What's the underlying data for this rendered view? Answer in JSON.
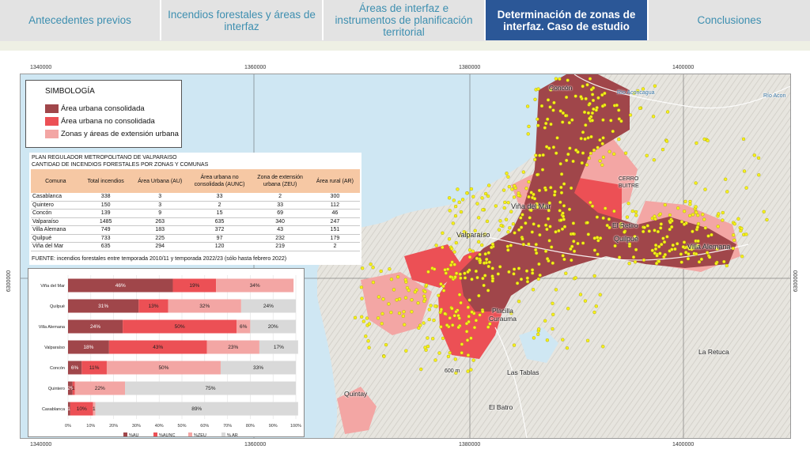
{
  "tabs": [
    {
      "label": "Antecedentes previos",
      "active": false
    },
    {
      "label": "Incendios forestales y áreas de interfaz",
      "active": false
    },
    {
      "label": "Áreas de interfaz e instrumentos de planificación territorial",
      "active": false
    },
    {
      "label": "Determinación de zonas de interfaz. Caso de estudio",
      "active": true
    },
    {
      "label": "Conclusiones",
      "active": false
    }
  ],
  "map": {
    "coords_top": [
      "1340000",
      "1360000",
      "1380000",
      "1400000"
    ],
    "coords_bottom": [
      "1340000",
      "1360000",
      "1380000",
      "1400000"
    ],
    "coord_left": "6300000",
    "coord_right": "6300000",
    "places": [
      "Concón",
      "Viña del Mar",
      "Valparaíso",
      "Quilpué",
      "Villa Alemana",
      "El Retiro",
      "CERRO",
      "BUITRE",
      "Placilla",
      "Curauma",
      "Las Tablas",
      "La Retuca",
      "Quintay",
      "El Batro",
      "600 m",
      "Río Aconcagua",
      "Río Acon"
    ]
  },
  "legend": {
    "title": "SIMBOLOGÍA",
    "items": [
      {
        "label": "Área urbana consolidada",
        "color": "#a0464a"
      },
      {
        "label": "Área urbana no consolidada",
        "color": "#ec5055"
      },
      {
        "label": "Zonas y áreas de extensión urbana",
        "color": "#f3a6a4"
      }
    ]
  },
  "table": {
    "title1": "PLAN REGULADOR METROPOLITANO DE VALPARAISO",
    "title2": "CANTIDAD DE INCENDIOS FORESTALES POR ZONAS Y COMUNAS",
    "headers": [
      "Comuna",
      "Total incendios",
      "Área Urbana (AU)",
      "Área urbana no consolidada (AUNC)",
      "Zona de extensión urbana (ZEU)",
      "Área rural (AR)"
    ],
    "rows": [
      [
        "Casablanca",
        "338",
        "3",
        "33",
        "2",
        "300"
      ],
      [
        "Quintero",
        "150",
        "3",
        "2",
        "33",
        "112"
      ],
      [
        "Concón",
        "139",
        "9",
        "15",
        "69",
        "46"
      ],
      [
        "Valparaíso",
        "1485",
        "263",
        "635",
        "340",
        "247"
      ],
      [
        "Villa Alemana",
        "749",
        "183",
        "372",
        "43",
        "151"
      ],
      [
        "Quilpué",
        "733",
        "225",
        "97",
        "232",
        "179"
      ],
      [
        "Viña del Mar",
        "635",
        "294",
        "120",
        "219",
        "2"
      ]
    ],
    "source": "FUENTE: incendios forestales entre temporada 2010/11 y temporada 2022/23 (sólo hasta febrero 2022)"
  },
  "chart_data": {
    "type": "bar",
    "stacked": true,
    "percent": true,
    "orientation": "horizontal",
    "categories": [
      "Viña del Mar",
      "Quilpué",
      "Villa Alemana",
      "Valparaíso",
      "Concón",
      "Quintero",
      "Casablanca"
    ],
    "series": [
      {
        "name": "%AU",
        "color": "#a0464a",
        "values": [
          46,
          31,
          24,
          18,
          6,
          2,
          1
        ],
        "labels": [
          "46%",
          "31%",
          "24%",
          "18%",
          "6%",
          "2%",
          "1%"
        ]
      },
      {
        "name": "%AUNC",
        "color": "#ec5055",
        "values": [
          19,
          13,
          50,
          43,
          11,
          1,
          10
        ],
        "labels": [
          "19%",
          "13%",
          "50%",
          "43%",
          "11%",
          "1%",
          "10%"
        ]
      },
      {
        "name": "%ZEU",
        "color": "#f3a6a4",
        "values": [
          34,
          32,
          6,
          23,
          50,
          22,
          1
        ],
        "labels": [
          "34%",
          "32%",
          "6%",
          "23%",
          "50%",
          "22%",
          "1%"
        ]
      },
      {
        "name": "% AR",
        "color": "#d9d9d9",
        "values": [
          0,
          24,
          20,
          17,
          33,
          75,
          89
        ],
        "labels": [
          "",
          "24%",
          "20%",
          "17%",
          "33%",
          "75%",
          "89%"
        ]
      }
    ],
    "xlim": [
      0,
      100
    ],
    "xticks": [
      "0%",
      "10%",
      "20%",
      "30%",
      "40%",
      "50%",
      "60%",
      "70%",
      "80%",
      "90%",
      "100%"
    ],
    "legend_position": "bottom",
    "grid": true
  }
}
